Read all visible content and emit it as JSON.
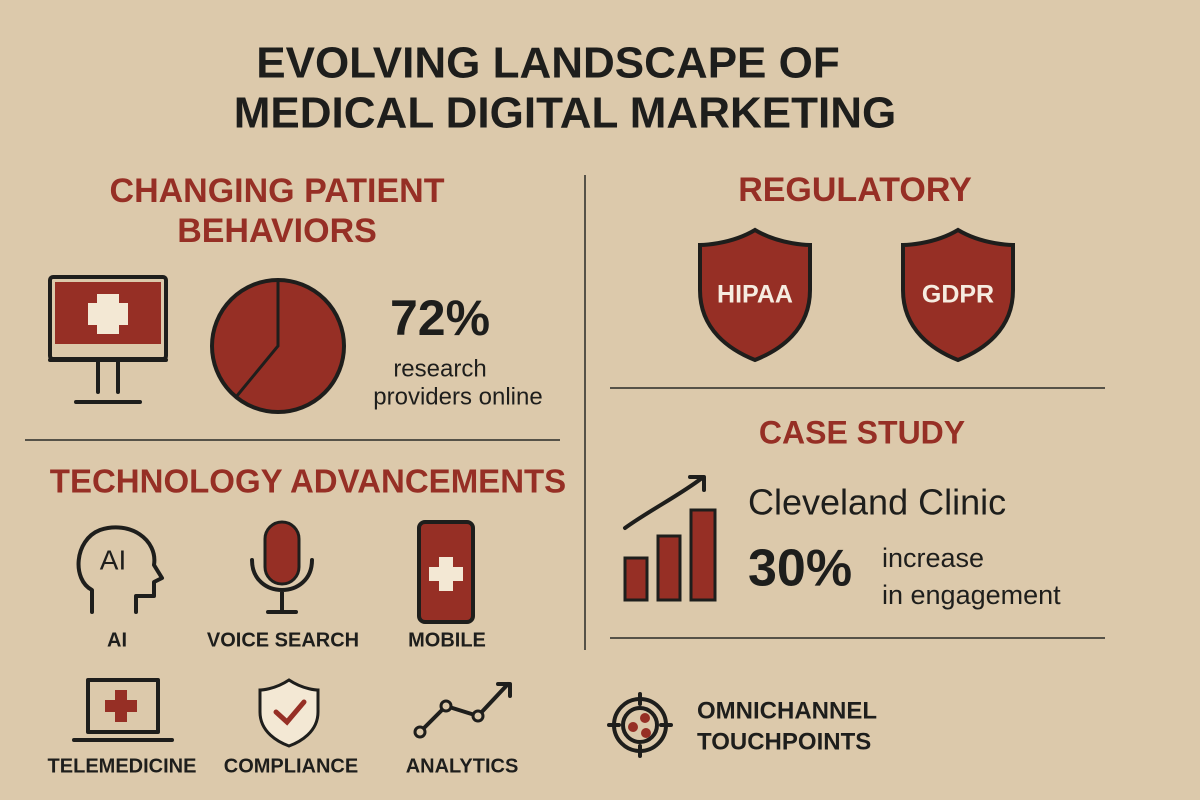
{
  "title": {
    "lines": [
      "EVOLVING LANDSCAPE OF",
      "MEDICAL DIGITAL MARKETING"
    ]
  },
  "patient_behaviors": {
    "heading": [
      "CHANGING PATIENT",
      "BEHAVIORS"
    ],
    "stat": "72%",
    "stat_label": [
      "research",
      "providers online"
    ]
  },
  "technology": {
    "heading": "TECHNOLOGY ADVANCEMENTS",
    "icon_text": "AI",
    "items": [
      "AI",
      "VOICE SEARCH",
      "MOBILE",
      "TELEMEDICINE",
      "COMPLIANCE",
      "ANALYTICS"
    ]
  },
  "regulatory": {
    "heading": "REGULATORY",
    "badges": [
      "HIPAA",
      "GDPR"
    ]
  },
  "case_study": {
    "heading": "CASE STUDY",
    "name": "Cleveland Clinic",
    "stat": "30%",
    "stat_label": [
      "increase",
      "in engagement"
    ]
  },
  "omnichannel": {
    "lines": [
      "OMNICHANNEL",
      "TOUCHPOINTS"
    ]
  }
}
